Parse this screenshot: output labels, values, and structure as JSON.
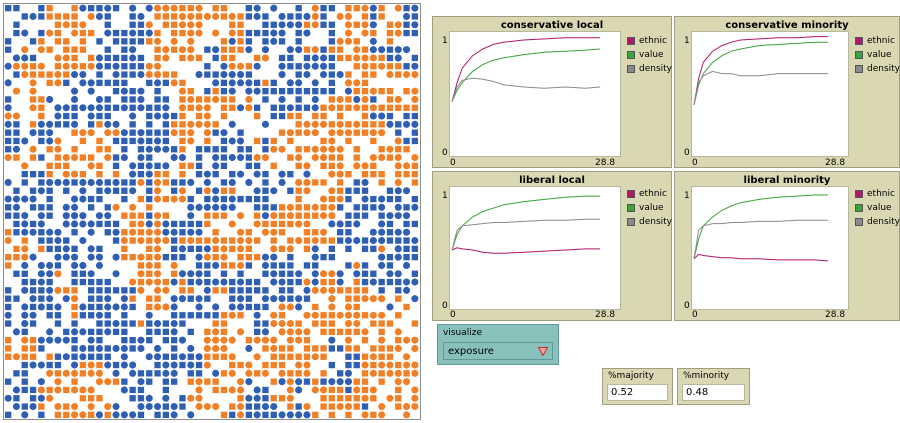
{
  "colors": {
    "orange": "#f07f26",
    "blue": "#2f5fb3",
    "ethnic": "#b0186a",
    "value": "#3aa33a",
    "density": "#8a8a8a"
  },
  "world": {
    "agent_types": [
      "orange-square",
      "orange-circle",
      "blue-square",
      "blue-circle"
    ],
    "grid_size": 50
  },
  "plots": [
    {
      "title": "conservative local",
      "y_max": "1",
      "y_min": "0",
      "x_min": "0",
      "x_max": "28.8",
      "legend": [
        "ethnic",
        "value",
        "density"
      ],
      "chart_data": {
        "type": "line",
        "xlim": [
          0,
          28.8
        ],
        "ylim": [
          0,
          1
        ],
        "series": [
          {
            "name": "ethnic",
            "x": [
              0,
              1,
              2,
              4,
              6,
              8,
              10,
              14,
              18,
              22,
              26,
              28.8
            ],
            "y": [
              0.45,
              0.62,
              0.75,
              0.86,
              0.92,
              0.96,
              0.98,
              1.0,
              1.01,
              1.02,
              1.02,
              1.02
            ]
          },
          {
            "name": "value",
            "x": [
              0,
              1,
              2,
              4,
              6,
              8,
              10,
              14,
              18,
              22,
              26,
              28.8
            ],
            "y": [
              0.45,
              0.55,
              0.62,
              0.72,
              0.78,
              0.82,
              0.84,
              0.87,
              0.89,
              0.9,
              0.91,
              0.92
            ]
          },
          {
            "name": "density",
            "x": [
              0,
              1,
              2,
              4,
              6,
              8,
              10,
              14,
              18,
              22,
              26,
              28.8
            ],
            "y": [
              0.45,
              0.58,
              0.64,
              0.66,
              0.65,
              0.63,
              0.6,
              0.58,
              0.57,
              0.58,
              0.57,
              0.58
            ]
          }
        ]
      }
    },
    {
      "title": "conservative minority",
      "y_max": "1",
      "y_min": "0",
      "x_min": "0",
      "x_max": "28.8",
      "legend": [
        "ethnic",
        "value",
        "density"
      ],
      "chart_data": {
        "type": "line",
        "xlim": [
          0,
          28.8
        ],
        "ylim": [
          0,
          1
        ],
        "series": [
          {
            "name": "ethnic",
            "x": [
              0,
              1,
              2,
              4,
              6,
              8,
              10,
              14,
              18,
              22,
              26,
              28.8
            ],
            "y": [
              0.42,
              0.66,
              0.8,
              0.9,
              0.95,
              0.98,
              1.0,
              1.01,
              1.02,
              1.02,
              1.03,
              1.03
            ]
          },
          {
            "name": "value",
            "x": [
              0,
              1,
              2,
              4,
              6,
              8,
              10,
              14,
              18,
              22,
              26,
              28.8
            ],
            "y": [
              0.42,
              0.6,
              0.7,
              0.8,
              0.86,
              0.9,
              0.92,
              0.95,
              0.96,
              0.97,
              0.98,
              0.98
            ]
          },
          {
            "name": "density",
            "x": [
              0,
              1,
              2,
              4,
              6,
              8,
              10,
              14,
              18,
              22,
              26,
              28.8
            ],
            "y": [
              0.42,
              0.62,
              0.68,
              0.72,
              0.7,
              0.7,
              0.68,
              0.68,
              0.7,
              0.7,
              0.7,
              0.7
            ]
          }
        ]
      }
    },
    {
      "title": "liberal local",
      "y_max": "1",
      "y_min": "0",
      "x_min": "0",
      "x_max": "28.8",
      "legend": [
        "ethnic",
        "value",
        "density"
      ],
      "chart_data": {
        "type": "line",
        "xlim": [
          0,
          28.8
        ],
        "ylim": [
          0,
          1
        ],
        "series": [
          {
            "name": "ethnic",
            "x": [
              0,
              1,
              2,
              4,
              6,
              8,
              10,
              14,
              18,
              22,
              26,
              28.8
            ],
            "y": [
              0.5,
              0.52,
              0.51,
              0.5,
              0.48,
              0.47,
              0.47,
              0.48,
              0.49,
              0.5,
              0.51,
              0.51
            ]
          },
          {
            "name": "value",
            "x": [
              0,
              1,
              2,
              4,
              6,
              8,
              10,
              14,
              18,
              22,
              26,
              28.8
            ],
            "y": [
              0.5,
              0.64,
              0.72,
              0.8,
              0.85,
              0.88,
              0.91,
              0.94,
              0.96,
              0.98,
              0.99,
              0.99
            ]
          },
          {
            "name": "density",
            "x": [
              0,
              1,
              2,
              4,
              6,
              8,
              10,
              14,
              18,
              22,
              26,
              28.8
            ],
            "y": [
              0.5,
              0.68,
              0.72,
              0.73,
              0.74,
              0.75,
              0.75,
              0.76,
              0.77,
              0.77,
              0.78,
              0.78
            ]
          }
        ]
      }
    },
    {
      "title": "liberal minority",
      "y_max": "1",
      "y_min": "0",
      "x_min": "0",
      "x_max": "28.8",
      "legend": [
        "ethnic",
        "value",
        "density"
      ],
      "chart_data": {
        "type": "line",
        "xlim": [
          0,
          28.8
        ],
        "ylim": [
          0,
          1
        ],
        "series": [
          {
            "name": "ethnic",
            "x": [
              0,
              1,
              2,
              4,
              6,
              8,
              10,
              14,
              18,
              22,
              26,
              28.8
            ],
            "y": [
              0.42,
              0.46,
              0.45,
              0.44,
              0.43,
              0.43,
              0.42,
              0.42,
              0.41,
              0.41,
              0.41,
              0.4
            ]
          },
          {
            "name": "value",
            "x": [
              0,
              1,
              2,
              4,
              6,
              8,
              10,
              14,
              18,
              22,
              26,
              28.8
            ],
            "y": [
              0.42,
              0.6,
              0.72,
              0.8,
              0.86,
              0.9,
              0.93,
              0.96,
              0.98,
              0.99,
              1.0,
              1.0
            ]
          },
          {
            "name": "density",
            "x": [
              0,
              1,
              2,
              4,
              6,
              8,
              10,
              14,
              18,
              22,
              26,
              28.8
            ],
            "y": [
              0.42,
              0.68,
              0.72,
              0.74,
              0.74,
              0.75,
              0.75,
              0.76,
              0.76,
              0.77,
              0.77,
              0.77
            ]
          }
        ]
      }
    }
  ],
  "chooser": {
    "label": "visualize",
    "value": "exposure"
  },
  "monitors": [
    {
      "label": "%majority",
      "value": "0.52"
    },
    {
      "label": "%minority",
      "value": "0.48"
    }
  ]
}
